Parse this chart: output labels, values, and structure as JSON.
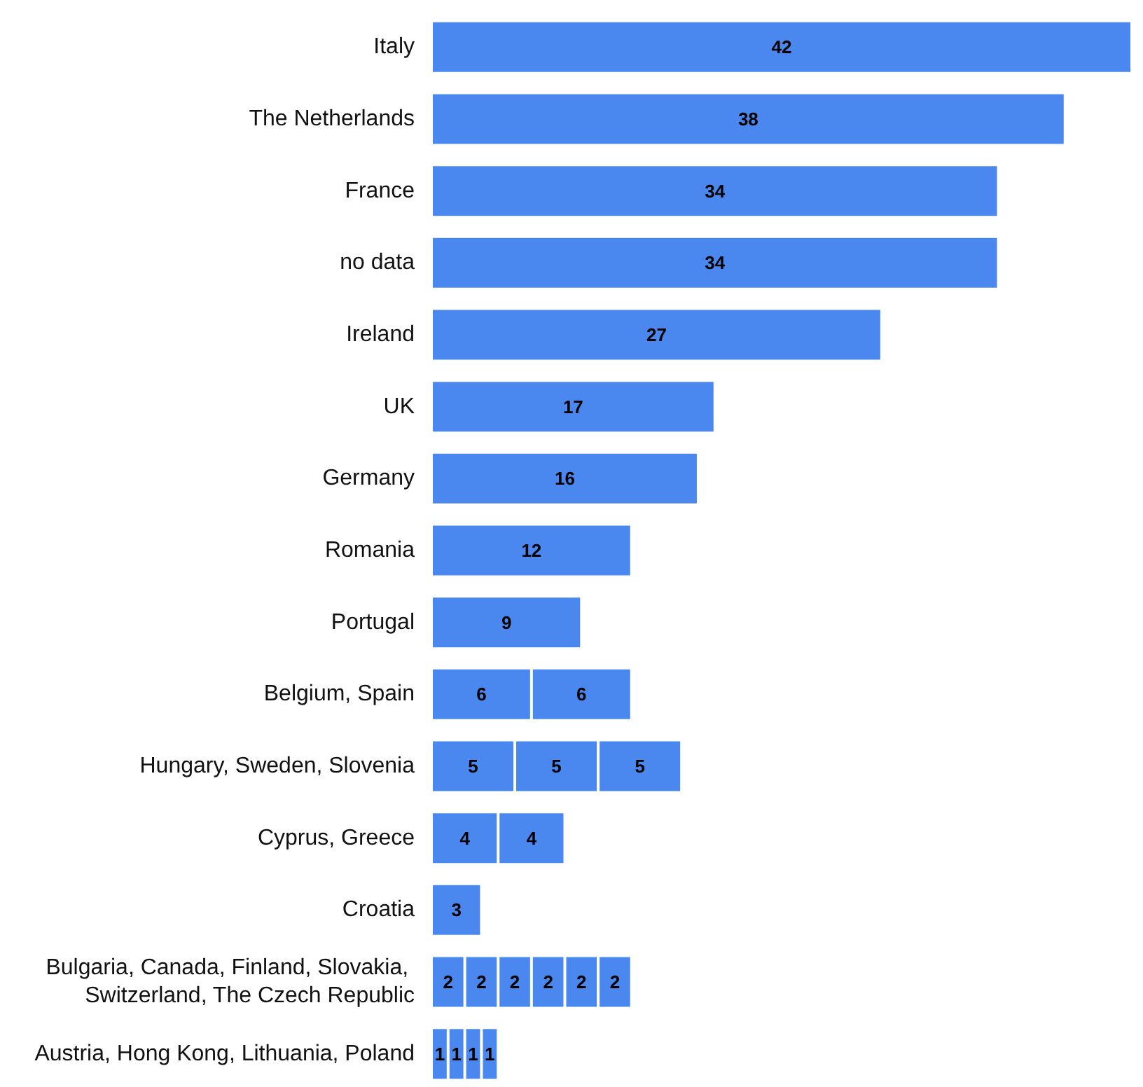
{
  "chart_data": {
    "type": "bar",
    "orientation": "horizontal",
    "stacked": true,
    "data_labels": true,
    "categories": [
      "Italy",
      "The Netherlands",
      "France",
      "no data",
      "Ireland",
      "UK",
      "Germany",
      "Romania",
      "Portugal",
      "Belgium, Spain",
      "Hungary, Sweden, Slovenia",
      "Cyprus, Greece",
      "Croatia",
      "Bulgaria, Canada, Finland, Slovakia, Switzerland, The Czech Republic",
      "Austria, Hong Kong, Lithuania, Poland"
    ],
    "series": [
      {
        "color": "#4a88f0",
        "values": [
          42,
          38,
          34,
          34,
          27,
          17,
          16,
          12,
          9,
          6,
          5,
          4,
          3,
          2,
          1
        ]
      },
      {
        "color": "#4a88f0",
        "values": [
          null,
          null,
          null,
          null,
          null,
          null,
          null,
          null,
          null,
          6,
          5,
          4,
          null,
          2,
          1
        ]
      },
      {
        "color": "#4a88f0",
        "values": [
          null,
          null,
          null,
          null,
          null,
          null,
          null,
          null,
          null,
          null,
          5,
          null,
          null,
          2,
          1
        ]
      },
      {
        "color": "#4a88f0",
        "values": [
          null,
          null,
          null,
          null,
          null,
          null,
          null,
          null,
          null,
          null,
          null,
          null,
          null,
          2,
          1
        ]
      },
      {
        "color": "#4a88f0",
        "values": [
          null,
          null,
          null,
          null,
          null,
          null,
          null,
          null,
          null,
          null,
          null,
          null,
          null,
          2,
          null
        ]
      },
      {
        "color": "#4a88f0",
        "values": [
          null,
          null,
          null,
          null,
          null,
          null,
          null,
          null,
          null,
          null,
          null,
          null,
          null,
          2,
          null
        ]
      }
    ]
  }
}
